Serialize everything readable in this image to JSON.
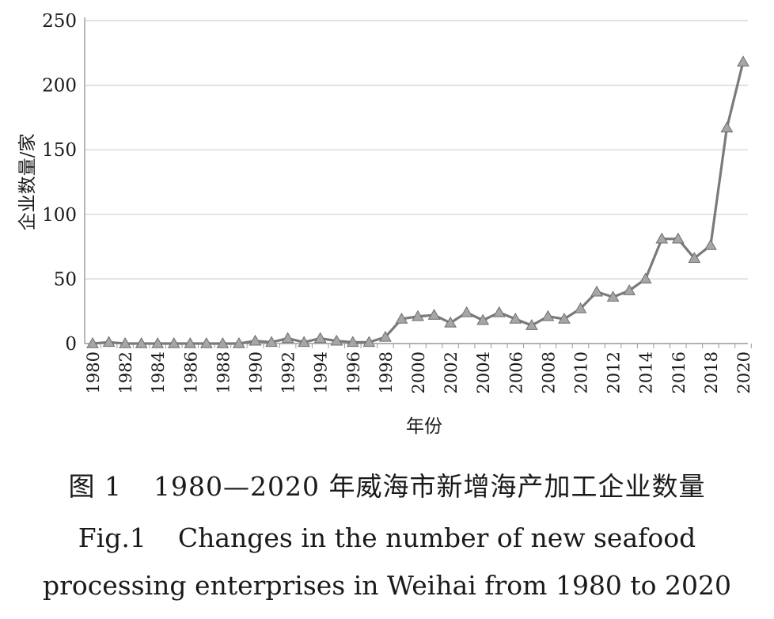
{
  "chart_data": {
    "type": "line",
    "xlabel": "年份",
    "ylabel": "企业数量/家",
    "ylim": [
      0,
      250
    ],
    "yticks": [
      "0",
      "50",
      "100",
      "150",
      "200",
      "250"
    ],
    "xtick_labels": [
      "1980",
      "1982",
      "1984",
      "1986",
      "1988",
      "1990",
      "1992",
      "1994",
      "1996",
      "1998",
      "2000",
      "2002",
      "2004",
      "2006",
      "2008",
      "2010",
      "2012",
      "2014",
      "2016",
      "2018",
      "2020"
    ],
    "grid": "horizontal",
    "marker": "triangle",
    "line_color": "#7a7a7a",
    "marker_color": "#a6a6a6",
    "x": [
      1980,
      1981,
      1982,
      1983,
      1984,
      1985,
      1986,
      1987,
      1988,
      1989,
      1990,
      1991,
      1992,
      1993,
      1994,
      1995,
      1996,
      1997,
      1998,
      1999,
      2000,
      2001,
      2002,
      2003,
      2004,
      2005,
      2006,
      2007,
      2008,
      2009,
      2010,
      2011,
      2012,
      2013,
      2014,
      2015,
      2016,
      2017,
      2018,
      2019,
      2020
    ],
    "values": [
      0.0,
      1.0,
      0.0,
      0.0,
      0.0,
      0.0,
      0.0,
      0.0,
      0.0,
      0.0,
      2.0,
      1.0,
      4.0,
      1.0,
      4.0,
      2.0,
      1.0,
      1.0,
      5.0,
      19.0,
      21.0,
      22.0,
      16.0,
      24.0,
      18.0,
      24.0,
      19.0,
      14.0,
      21.0,
      19.0,
      27.0,
      40.0,
      36.0,
      41.0,
      50.0,
      81.0,
      81.0,
      66.0,
      76.0,
      167.0,
      218.0
    ]
  },
  "caption": {
    "zh_fig": "图 1",
    "zh_text": "1980—2020 年威海市新增海产加工企业数量",
    "en_fig": "Fig.1",
    "en_line1": "Changes in the number of new seafood",
    "en_line2": "processing enterprises in Weihai from 1980 to 2020"
  }
}
